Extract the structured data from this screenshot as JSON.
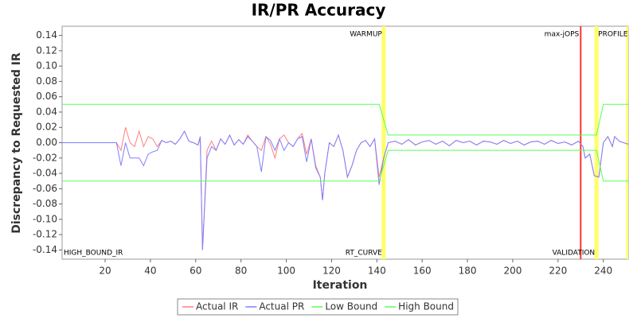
{
  "chart_data": {
    "type": "line",
    "title": "IR/PR Accuracy",
    "x_label": "Iteration",
    "y_label": "Discrepancy to Requested IR",
    "xlim": [
      1,
      251
    ],
    "xticks": [
      20,
      40,
      60,
      80,
      100,
      120,
      140,
      160,
      180,
      200,
      220,
      240
    ],
    "ylim": [
      -0.152,
      0.152
    ],
    "yticks": [
      {
        "value": -0.14,
        "label": "-0.14"
      },
      {
        "value": -0.12,
        "label": "-0.12"
      },
      {
        "value": -0.1,
        "label": "-0.10"
      },
      {
        "value": -0.08,
        "label": "-0.08"
      },
      {
        "value": -0.06,
        "label": "-0.06"
      },
      {
        "value": -0.04,
        "label": "-0.04"
      },
      {
        "value": -0.02,
        "label": "-0.02"
      },
      {
        "value": 0,
        "label": "0.00"
      },
      {
        "value": 0.02,
        "label": "0.02"
      },
      {
        "value": 0.04,
        "label": "0.04"
      },
      {
        "value": 0.06,
        "label": "0.06"
      },
      {
        "value": 0.08,
        "label": "0.08"
      },
      {
        "value": 0.1,
        "label": "0.10"
      },
      {
        "value": 0.12,
        "label": "0.12"
      },
      {
        "value": 0.14,
        "label": "0.14"
      }
    ],
    "x": [
      1,
      25,
      27,
      29,
      31,
      33,
      35,
      37,
      39,
      41,
      43,
      45,
      47,
      49,
      51,
      53,
      55,
      57,
      59,
      61,
      62,
      63,
      65,
      67,
      69,
      71,
      73,
      75,
      77,
      79,
      81,
      83,
      85,
      87,
      89,
      91,
      93,
      95,
      97,
      99,
      101,
      103,
      105,
      107,
      109,
      111,
      113,
      115,
      116,
      117,
      119,
      121,
      123,
      125,
      127,
      129,
      131,
      133,
      135,
      137,
      139,
      141,
      143,
      145,
      148,
      151,
      154,
      157,
      160,
      163,
      166,
      169,
      172,
      175,
      178,
      181,
      184,
      187,
      190,
      193,
      196,
      199,
      202,
      205,
      208,
      211,
      214,
      217,
      220,
      223,
      226,
      229,
      231,
      232,
      234,
      236,
      238,
      240,
      242,
      244,
      245,
      247,
      249,
      251
    ],
    "series": [
      {
        "name": "Actual IR",
        "color": "#ff7f7f",
        "values": [
          0,
          0,
          -0.01,
          0.02,
          0,
          -0.005,
          0.015,
          -0.005,
          0.008,
          0.005,
          -0.005,
          0.003,
          0,
          0.002,
          -0.002,
          0.005,
          0.015,
          0.002,
          0,
          -0.003,
          0.005,
          -0.14,
          -0.01,
          0.002,
          -0.01,
          0.005,
          -0.002,
          0.01,
          -0.003,
          0.004,
          -0.002,
          0.01,
          0.002,
          -0.005,
          -0.01,
          0.008,
          -0.002,
          -0.02,
          0.005,
          0.01,
          0,
          -0.005,
          0.005,
          0.012,
          -0.015,
          0.005,
          -0.03,
          -0.045,
          -0.075,
          -0.04,
          0,
          -0.005,
          0.01,
          -0.01,
          -0.045,
          -0.03,
          -0.01,
          0,
          0.003,
          -0.005,
          0.005,
          -0.045,
          -0.02,
          0,
          0.002,
          -0.002,
          0.004,
          -0.003,
          0.001,
          0.003,
          -0.002,
          0.002,
          -0.004,
          0.003,
          0,
          0.002,
          -0.003,
          0.002,
          0.001,
          -0.002,
          0.003,
          -0.001,
          0.002,
          -0.003,
          0.001,
          0.002,
          -0.002,
          0.003,
          -0.001,
          0.001,
          -0.003,
          0.002,
          -0.005,
          -0.02,
          -0.015,
          -0.043,
          -0.045,
          0,
          0.008,
          -0.005,
          0.008,
          0.002,
          0,
          -0.002
        ]
      },
      {
        "name": "Actual PR",
        "color": "#7f7fff",
        "values": [
          0,
          0,
          -0.03,
          0,
          -0.02,
          -0.02,
          -0.02,
          -0.03,
          -0.015,
          -0.012,
          -0.01,
          0.003,
          0,
          0.002,
          -0.002,
          0.005,
          0.015,
          0.002,
          0,
          -0.003,
          0.008,
          -0.14,
          -0.02,
          -0.005,
          -0.01,
          0.005,
          -0.002,
          0.01,
          -0.003,
          0.004,
          -0.002,
          0.008,
          0.002,
          -0.005,
          -0.038,
          0.008,
          0.003,
          -0.01,
          0.005,
          -0.01,
          0,
          -0.005,
          0.005,
          0.008,
          -0.025,
          0.005,
          -0.033,
          -0.045,
          -0.075,
          -0.04,
          0,
          -0.005,
          0.01,
          -0.01,
          -0.045,
          -0.03,
          -0.01,
          0,
          0.003,
          -0.005,
          0.005,
          -0.055,
          -0.02,
          0,
          0.002,
          -0.002,
          0.004,
          -0.003,
          0.001,
          0.003,
          -0.002,
          0.002,
          -0.004,
          0.003,
          0,
          0.002,
          -0.003,
          0.002,
          0.001,
          -0.002,
          0.003,
          -0.001,
          0.002,
          -0.003,
          0.001,
          0.002,
          -0.002,
          0.003,
          -0.001,
          0.001,
          -0.003,
          0.002,
          -0.005,
          -0.02,
          -0.015,
          -0.043,
          -0.045,
          0,
          0.008,
          -0.005,
          0.008,
          0.002,
          0,
          -0.002
        ]
      },
      {
        "name": "Low Bound",
        "color": "#55ff55",
        "x": [
          1,
          141,
          145,
          237,
          240,
          251
        ],
        "values": [
          -0.05,
          -0.05,
          -0.01,
          -0.01,
          -0.05,
          -0.05
        ]
      },
      {
        "name": "High Bound",
        "color": "#55ff55",
        "x": [
          1,
          141,
          145,
          237,
          240,
          251
        ],
        "values": [
          0.05,
          0.05,
          0.01,
          0.01,
          0.05,
          0.05
        ]
      }
    ],
    "markers": [
      {
        "x": 143,
        "color": "#ffff66"
      },
      {
        "x": 230,
        "color": "#ff3333"
      },
      {
        "x": 237,
        "color": "#ffff66"
      },
      {
        "x": 251,
        "color": "#ffff66"
      }
    ],
    "annotations": [
      {
        "text": "HIGH_BOUND_IR",
        "x": 1,
        "place": "bottom",
        "anchor": "start"
      },
      {
        "text": "WARMUP",
        "x": 143,
        "place": "top",
        "anchor": "end"
      },
      {
        "text": "RT_CURVE",
        "x": 143,
        "place": "bottom",
        "anchor": "end"
      },
      {
        "text": "max-jOPS",
        "x": 230,
        "place": "top",
        "anchor": "end"
      },
      {
        "text": "VALIDATION",
        "x": 237,
        "place": "bottom",
        "anchor": "end"
      },
      {
        "text": "PROFILE",
        "x": 237,
        "place": "top",
        "anchor": "start"
      }
    ],
    "legend": "bottom"
  }
}
